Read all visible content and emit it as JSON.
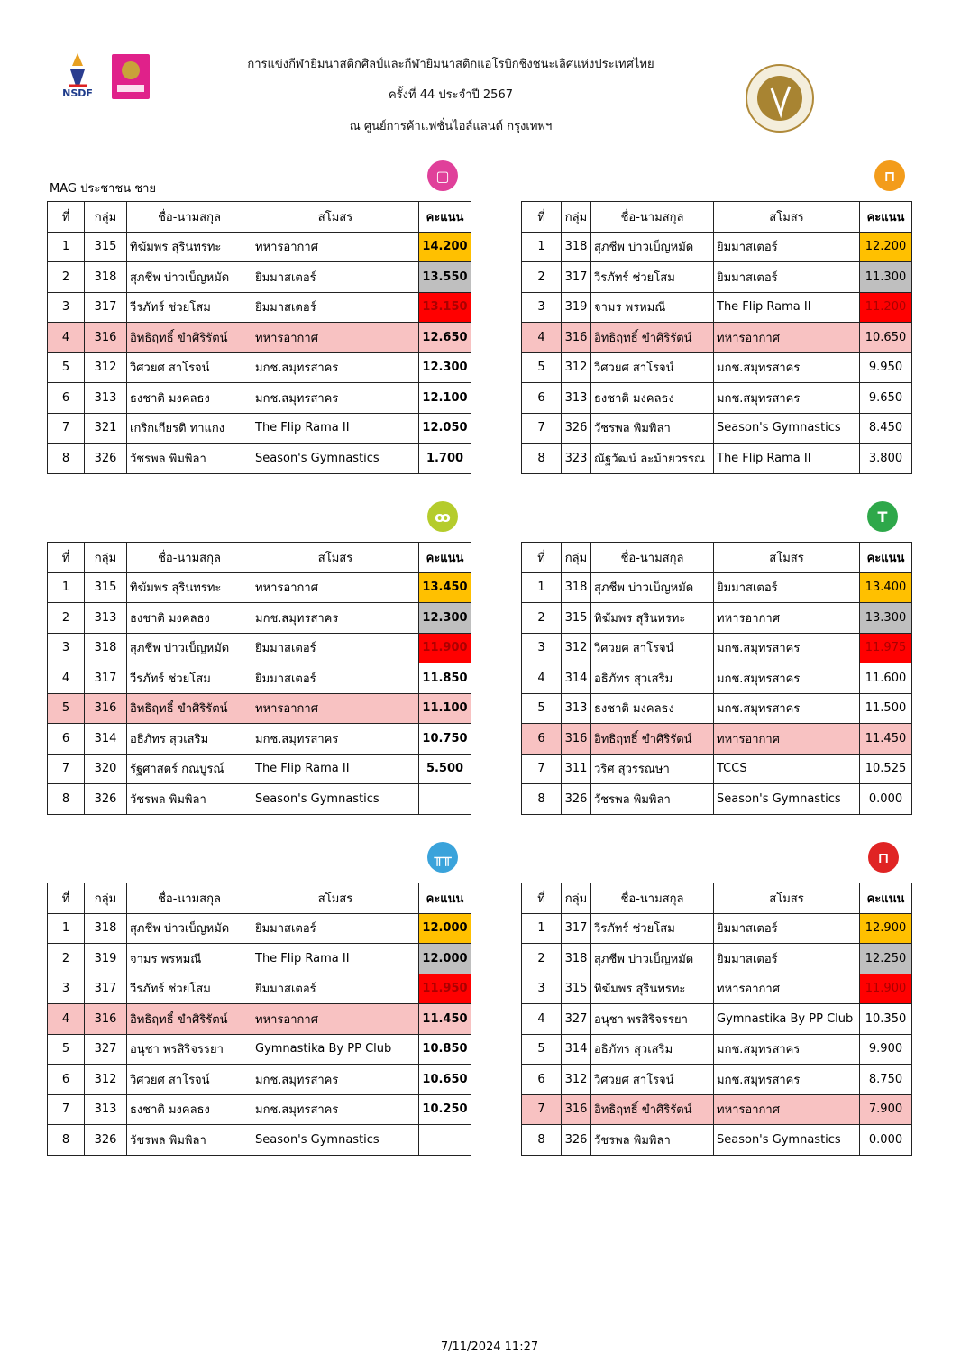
{
  "header": {
    "title_line1": "การแข่งกีฬายิมนาสติกศิลป์และกีฬายิมนาสติกแอโรบิกชิงชนะเลิศแห่งประเทศไทย",
    "title_line2": "ครั้งที่ 44 ประจำปี 2567",
    "title_line3": "ณ ศูนย์การค้าแฟชั่นไอส์แลนด์ กรุงเทพฯ",
    "logos": [
      "NSDF",
      "ออมสิน",
      "Gymnastics Association of Thailand"
    ]
  },
  "category": "MAG ประชาชน ชาย",
  "columns": [
    "ที่",
    "กลุ่ม",
    "ชื่อ-นามสกุล",
    "สโมสร",
    "คะแนน"
  ],
  "medal_colors": {
    "gold": "#ffc000",
    "silver": "#bfbfbf",
    "bronze": "#ff0000"
  },
  "tables": [
    {
      "apparatus_icon": "floor-icon",
      "icon_color": "#e0409a",
      "highlight_rank": "4",
      "rows": [
        [
          "1",
          "315",
          "ทิฆัมพร สุรินทรทะ",
          "ทหารอากาศ",
          "14.200"
        ],
        [
          "2",
          "318",
          "สุภชีพ บ่าวเบ็ญหมัด",
          "ยิมมาสเตอร์",
          "13.550"
        ],
        [
          "3",
          "317",
          "วีรภัทร์ ช่วยโสม",
          "ยิมมาสเตอร์",
          "13.150"
        ],
        [
          "4",
          "316",
          "อิทธิฤทธิ์ ขำศิริรัตน์",
          "ทหารอากาศ",
          "12.650"
        ],
        [
          "5",
          "312",
          "วิศวยศ สาโรจน์",
          "มกช.สมุทรสาคร",
          "12.300"
        ],
        [
          "6",
          "313",
          "ธงชาติ มงคลธง",
          "มกช.สมุทรสาคร",
          "12.100"
        ],
        [
          "7",
          "321",
          "เกริกเกียรติ ทาแกง",
          "The Flip Rama II",
          "12.050"
        ],
        [
          "8",
          "326",
          "วัชรพล พิมพิลา",
          "Season's Gymnastics",
          "1.700"
        ]
      ]
    },
    {
      "apparatus_icon": "pommel-horse-icon",
      "icon_color": "#f39c1b",
      "highlight_rank": "4",
      "rows": [
        [
          "1",
          "318",
          "สุภชีพ บ่าวเบ็ญหมัด",
          "ยิมมาสเตอร์",
          "12.200"
        ],
        [
          "2",
          "317",
          "วีรภัทร์ ช่วยโสม",
          "ยิมมาสเตอร์",
          "11.300"
        ],
        [
          "3",
          "319",
          "จามร พรหมณี",
          "The Flip Rama II",
          "11.200"
        ],
        [
          "4",
          "316",
          "อิทธิฤทธิ์ ขำศิริรัตน์",
          "ทหารอากาศ",
          "10.650"
        ],
        [
          "5",
          "312",
          "วิศวยศ สาโรจน์",
          "มกช.สมุทรสาคร",
          "9.950"
        ],
        [
          "6",
          "313",
          "ธงชาติ มงคลธง",
          "มกช.สมุทรสาคร",
          "9.650"
        ],
        [
          "7",
          "326",
          "วัชรพล พิมพิลา",
          "Season's Gymnastics",
          "8.450"
        ],
        [
          "8",
          "323",
          "ณัฐวัฒน์ ละม้ายวรรณ",
          "The Flip Rama II",
          "3.800"
        ]
      ]
    },
    {
      "apparatus_icon": "rings-icon",
      "icon_color": "#b5cc2c",
      "highlight_rank": "5",
      "rows": [
        [
          "1",
          "315",
          "ทิฆัมพร สุรินทรทะ",
          "ทหารอากาศ",
          "13.450"
        ],
        [
          "2",
          "313",
          "ธงชาติ มงคลธง",
          "มกช.สมุทรสาคร",
          "12.300"
        ],
        [
          "3",
          "318",
          "สุภชีพ บ่าวเบ็ญหมัด",
          "ยิมมาสเตอร์",
          "11.900"
        ],
        [
          "4",
          "317",
          "วีรภัทร์ ช่วยโสม",
          "ยิมมาสเตอร์",
          "11.850"
        ],
        [
          "5",
          "316",
          "อิทธิฤทธิ์ ขำศิริรัตน์",
          "ทหารอากาศ",
          "11.100"
        ],
        [
          "6",
          "314",
          "อธิภัทร สุวเสริม",
          "มกช.สมุทรสาคร",
          "10.750"
        ],
        [
          "7",
          "320",
          "รัฐศาสตร์ กณบูรณ์",
          "The Flip Rama II",
          "5.500"
        ],
        [
          "8",
          "326",
          "วัชรพล พิมพิลา",
          "Season's Gymnastics",
          ""
        ]
      ]
    },
    {
      "apparatus_icon": "vault-icon",
      "icon_color": "#2ea84a",
      "highlight_rank": "6",
      "rows": [
        [
          "1",
          "318",
          "สุภชีพ บ่าวเบ็ญหมัด",
          "ยิมมาสเตอร์",
          "13.400"
        ],
        [
          "2",
          "315",
          "ทิฆัมพร สุรินทรทะ",
          "ทหารอากาศ",
          "13.300"
        ],
        [
          "3",
          "312",
          "วิศวยศ สาโรจน์",
          "มกช.สมุทรสาคร",
          "11.975"
        ],
        [
          "4",
          "314",
          "อธิภัทร สุวเสริม",
          "มกช.สมุทรสาคร",
          "11.600"
        ],
        [
          "5",
          "313",
          "ธงชาติ มงคลธง",
          "มกช.สมุทรสาคร",
          "11.500"
        ],
        [
          "6",
          "316",
          "อิทธิฤทธิ์ ขำศิริรัตน์",
          "ทหารอากาศ",
          "11.450"
        ],
        [
          "7",
          "311",
          "วริศ สุวรรณษา",
          "TCCS",
          "10.525"
        ],
        [
          "8",
          "326",
          "วัชรพล พิมพิลา",
          "Season's Gymnastics",
          "0.000"
        ]
      ]
    },
    {
      "apparatus_icon": "parallel-bars-icon",
      "icon_color": "#3aa3db",
      "highlight_rank": "4",
      "rows": [
        [
          "1",
          "318",
          "สุภชีพ บ่าวเบ็ญหมัด",
          "ยิมมาสเตอร์",
          "12.000"
        ],
        [
          "2",
          "319",
          "จามร พรหมณี",
          "The Flip Rama II",
          "12.000"
        ],
        [
          "3",
          "317",
          "วีรภัทร์ ช่วยโสม",
          "ยิมมาสเตอร์",
          "11.950"
        ],
        [
          "4",
          "316",
          "อิทธิฤทธิ์ ขำศิริรัตน์",
          "ทหารอากาศ",
          "11.450"
        ],
        [
          "5",
          "327",
          "อนุชา พรสิริจรรยา",
          "Gymnastika By PP Club",
          "10.850"
        ],
        [
          "6",
          "312",
          "วิศวยศ สาโรจน์",
          "มกช.สมุทรสาคร",
          "10.650"
        ],
        [
          "7",
          "313",
          "ธงชาติ มงคลธง",
          "มกช.สมุทรสาคร",
          "10.250"
        ],
        [
          "8",
          "326",
          "วัชรพล พิมพิลา",
          "Season's Gymnastics",
          ""
        ]
      ]
    },
    {
      "apparatus_icon": "high-bar-icon",
      "icon_color": "#e02424",
      "highlight_rank": "7",
      "rows": [
        [
          "1",
          "317",
          "วีรภัทร์ ช่วยโสม",
          "ยิมมาสเตอร์",
          "12.900"
        ],
        [
          "2",
          "318",
          "สุภชีพ บ่าวเบ็ญหมัด",
          "ยิมมาสเตอร์",
          "12.250"
        ],
        [
          "3",
          "315",
          "ทิฆัมพร สุรินทรทะ",
          "ทหารอากาศ",
          "11.900"
        ],
        [
          "4",
          "327",
          "อนุชา พรสิริจรรยา",
          "Gymnastika By PP Club",
          "10.350"
        ],
        [
          "5",
          "314",
          "อธิภัทร สุวเสริม",
          "มกช.สมุทรสาคร",
          "9.900"
        ],
        [
          "6",
          "312",
          "วิศวยศ สาโรจน์",
          "มกช.สมุทรสาคร",
          "8.750"
        ],
        [
          "7",
          "316",
          "อิทธิฤทธิ์ ขำศิริรัตน์",
          "ทหารอากาศ",
          "7.900"
        ],
        [
          "8",
          "326",
          "วัชรพล พิมพิลา",
          "Season's Gymnastics",
          "0.000"
        ]
      ]
    }
  ],
  "footer": {
    "timestamp": "7/11/2024  11:27"
  }
}
